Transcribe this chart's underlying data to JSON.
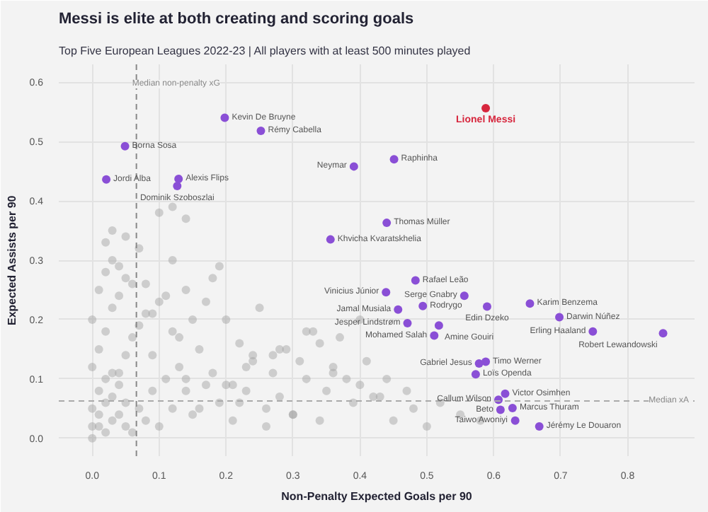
{
  "chart_data": {
    "type": "scatter",
    "title": "Messi is elite at both creating and scoring goals",
    "subtitle": "Top Five European Leagues 2022-23 | All players with at least 500 minutes played",
    "xlabel": "Non-Penalty Expected Goals per 90",
    "ylabel": "Expected Assists per 90",
    "xlim": [
      -0.05,
      0.9
    ],
    "ylim": [
      -0.03,
      0.63
    ],
    "xticks": [
      {
        "value": 0,
        "label": "0.0"
      },
      0.1,
      0.2,
      0.3,
      0.4,
      0.5,
      0.6,
      0.7,
      0.8
    ],
    "yticks": [
      {
        "value": 0,
        "label": "0.0"
      },
      0.1,
      0.2,
      0.3,
      0.4,
      0.5,
      0.6
    ],
    "grid": true,
    "marker": "circle",
    "series": [
      {
        "color": "#a0a0a0",
        "x": [
          0.0,
          0.01,
          0.02,
          0.0,
          0.03,
          0.01,
          0.04,
          0.02,
          0.05,
          0.0,
          0.01,
          0.03,
          0.06,
          0.02,
          0.04,
          0.07,
          0.0,
          0.05,
          0.08,
          0.03,
          0.01,
          0.09,
          0.06,
          0.02,
          0.1,
          0.04,
          0.11,
          0.07,
          0.12,
          0.05,
          0.13,
          0.03,
          0.14,
          0.08,
          0.15,
          0.02,
          0.16,
          0.1,
          0.17,
          0.06,
          0.18,
          0.12,
          0.19,
          0.09,
          0.2,
          0.04,
          0.21,
          0.14,
          0.22,
          0.11,
          0.23,
          0.07,
          0.24,
          0.16,
          0.25,
          0.13,
          0.26,
          0.03,
          0.27,
          0.18,
          0.28,
          0.1,
          0.29,
          0.2,
          0.3,
          0.15,
          0.31,
          0.08,
          0.32,
          0.22,
          0.33,
          0.12,
          0.34,
          0.24,
          0.35,
          0.17,
          0.36,
          0.26,
          0.37,
          0.19,
          0.38,
          0.05,
          0.39,
          0.28,
          0.4,
          0.21,
          0.41,
          0.3,
          0.42,
          0.14,
          0.44,
          0.32,
          0.45,
          0.23,
          0.47,
          0.34,
          0.48,
          0.09,
          0.5,
          0.36,
          0.52,
          0.27,
          0.55,
          0.4,
          0.58,
          0.43,
          0.0,
          0.02,
          0.04,
          0.01,
          0.03,
          0.05,
          0.12,
          0.14
        ],
        "values": [
          0.0,
          0.02,
          0.01,
          0.05,
          0.03,
          0.08,
          0.04,
          0.1,
          0.02,
          0.12,
          0.15,
          0.07,
          0.01,
          0.18,
          0.11,
          0.05,
          0.2,
          0.14,
          0.03,
          0.22,
          0.25,
          0.08,
          0.17,
          0.28,
          0.02,
          0.24,
          0.1,
          0.19,
          0.05,
          0.27,
          0.12,
          0.3,
          0.08,
          0.21,
          0.04,
          0.33,
          0.15,
          0.23,
          0.09,
          0.26,
          0.11,
          0.18,
          0.06,
          0.14,
          0.2,
          0.29,
          0.03,
          0.1,
          0.16,
          0.24,
          0.08,
          0.32,
          0.13,
          0.05,
          0.22,
          0.17,
          0.02,
          0.35,
          0.11,
          0.27,
          0.07,
          0.38,
          0.15,
          0.09,
          0.04,
          0.2,
          0.13,
          0.26,
          0.1,
          0.06,
          0.18,
          0.3,
          0.03,
          0.14,
          0.08,
          0.23,
          0.12,
          0.05,
          0.17,
          0.29,
          0.1,
          0.34,
          0.06,
          0.15,
          0.2,
          0.09,
          0.13,
          0.04,
          0.07,
          0.25,
          0.1,
          0.18,
          0.03,
          0.12,
          0.08,
          0.16,
          0.05,
          0.21,
          0.02,
          0.11,
          0.06,
          0.14,
          0.04,
          0.09,
          0.03,
          0.07,
          0.02,
          0.06,
          0.09,
          0.04,
          0.11,
          0.06,
          0.39,
          0.37
        ]
      },
      {
        "color": "#8a4fd6",
        "x": [
          0.198,
          0.252,
          0.049,
          0.021,
          0.129,
          0.127,
          0.391,
          0.451,
          0.44,
          0.356,
          0.483,
          0.439,
          0.457,
          0.471,
          0.494,
          0.556,
          0.59,
          0.654,
          0.698,
          0.748,
          0.853,
          0.518,
          0.511,
          0.588,
          0.578,
          0.573,
          0.617,
          0.607,
          0.628,
          0.61,
          0.632,
          0.668
        ],
        "values": [
          0.54,
          0.518,
          0.492,
          0.436,
          0.437,
          0.425,
          0.458,
          0.47,
          0.363,
          0.335,
          0.266,
          0.246,
          0.217,
          0.194,
          0.223,
          0.24,
          0.222,
          0.227,
          0.204,
          0.18,
          0.177,
          0.19,
          0.173,
          0.129,
          0.126,
          0.108,
          0.075,
          0.065,
          0.051,
          0.048,
          0.03,
          0.02
        ]
      },
      {
        "name": "Lionel Messi",
        "color": "#d7263d",
        "x": [
          0.588
        ],
        "values": [
          0.556
        ]
      }
    ],
    "ref_lines": [
      {
        "axis": "x",
        "value": 0.066,
        "label": "Median non-penalty xG",
        "color": "#888888",
        "line_style": "dashed"
      },
      {
        "axis": "y",
        "value": 0.063,
        "label": "Median xA",
        "color": "#aaaaaa",
        "line_style": "dashed"
      }
    ],
    "annotations": [
      {
        "text": "Kevin De Bruyne",
        "x": 0.198,
        "y": 0.54
      },
      {
        "text": "Rémy Cabella",
        "x": 0.252,
        "y": 0.518
      },
      {
        "text": "Borna Sosa",
        "x": 0.049,
        "y": 0.492
      },
      {
        "text": "Jordi Alba",
        "x": 0.021,
        "y": 0.436
      },
      {
        "text": "Alexis Flips",
        "x": 0.129,
        "y": 0.437
      },
      {
        "text": "Dominik Szoboszlai",
        "x": 0.127,
        "y": 0.425
      },
      {
        "text": "Neymar",
        "x": 0.391,
        "y": 0.458
      },
      {
        "text": "Raphinha",
        "x": 0.451,
        "y": 0.47
      },
      {
        "text": "Thomas Müller",
        "x": 0.44,
        "y": 0.363
      },
      {
        "text": "Khvicha Kvaratskhelia",
        "x": 0.356,
        "y": 0.335
      },
      {
        "text": "Rafael Leão",
        "x": 0.483,
        "y": 0.266
      },
      {
        "text": "Vinicius Júnior",
        "x": 0.439,
        "y": 0.246
      },
      {
        "text": "Jamal Musiala",
        "x": 0.457,
        "y": 0.217
      },
      {
        "text": "Jesper Lindstrøm",
        "x": 0.471,
        "y": 0.194
      },
      {
        "text": "Rodrygo",
        "x": 0.494,
        "y": 0.223
      },
      {
        "text": "Serge Gnabry",
        "x": 0.556,
        "y": 0.24
      },
      {
        "text": "Edin Dzeko",
        "x": 0.59,
        "y": 0.222
      },
      {
        "text": "Karim Benzema",
        "x": 0.654,
        "y": 0.227
      },
      {
        "text": "Darwin Núñez",
        "x": 0.698,
        "y": 0.204
      },
      {
        "text": "Erling Haaland",
        "x": 0.748,
        "y": 0.18
      },
      {
        "text": "Robert Lewandowski",
        "x": 0.853,
        "y": 0.177
      },
      {
        "text": "Amine Gouiri",
        "x": 0.518,
        "y": 0.19
      },
      {
        "text": "Mohamed Salah",
        "x": 0.511,
        "y": 0.173
      },
      {
        "text": "Timo Werner",
        "x": 0.588,
        "y": 0.129
      },
      {
        "text": "Gabriel Jesus",
        "x": 0.578,
        "y": 0.126
      },
      {
        "text": "Loïs Openda",
        "x": 0.573,
        "y": 0.108
      },
      {
        "text": "Victor Osimhen",
        "x": 0.617,
        "y": 0.075
      },
      {
        "text": "Callum Wilson",
        "x": 0.607,
        "y": 0.065
      },
      {
        "text": "Marcus Thuram",
        "x": 0.628,
        "y": 0.051
      },
      {
        "text": "Beto",
        "x": 0.61,
        "y": 0.048
      },
      {
        "text": "Taiwo Awoniyi",
        "x": 0.632,
        "y": 0.03
      },
      {
        "text": "Jérémy Le Douaron",
        "x": 0.668,
        "y": 0.02
      }
    ]
  }
}
